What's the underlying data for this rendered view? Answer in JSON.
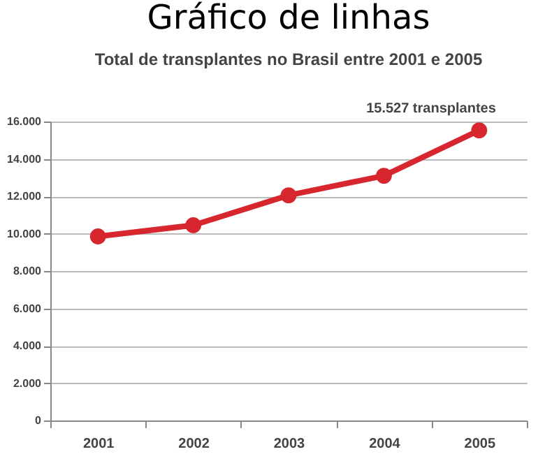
{
  "chart_data": {
    "type": "line",
    "title": "Gráfico de linhas",
    "subtitle": "Total de transplantes no Brasil entre 2001 e 2005",
    "categories": [
      "2001",
      "2002",
      "2003",
      "2004",
      "2005"
    ],
    "series": [
      {
        "color": "#d7262e",
        "values": [
          9850,
          10450,
          12050,
          13100,
          15527
        ]
      }
    ],
    "ylim": [
      0,
      16000
    ],
    "yticks": [
      {
        "value": 0,
        "label": "0"
      },
      {
        "value": 2000,
        "label": "2.000"
      },
      {
        "value": 4000,
        "label": "4.000"
      },
      {
        "value": 6000,
        "label": "6.000"
      },
      {
        "value": 8000,
        "label": "8.000"
      },
      {
        "value": 10000,
        "label": "10.000"
      },
      {
        "value": 12000,
        "label": "12.000"
      },
      {
        "value": 14000,
        "label": "14.000"
      },
      {
        "value": 16000,
        "label": "16.000"
      }
    ],
    "annotations": [
      {
        "text": "15.527 transplantes",
        "x": "2005",
        "y": 15527
      }
    ],
    "grid": "y",
    "marker": "circle",
    "line_style": "solid",
    "legend": false
  }
}
